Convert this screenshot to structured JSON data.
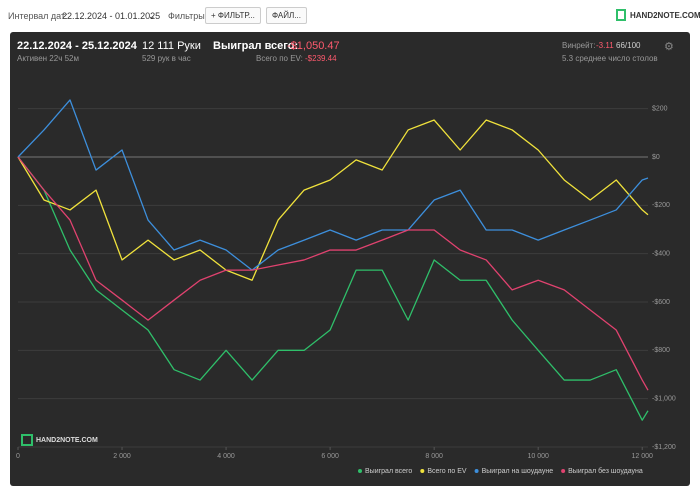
{
  "toolbar": {
    "date_label": "Интервал дат:",
    "date_range": "22.12.2024 - 01.01.2025",
    "filters_label": "Фильтры:",
    "filter_button": "ФИЛЬТР...",
    "file_button": "ФАЙЛ...",
    "logo": "HAND2NOTE.COM"
  },
  "summary": {
    "period": "22.12.2024 - 25.12.2024",
    "active": "Активен 22ч 52м",
    "hands": "12 111 Руки",
    "hands_per_hour": "529 рук в час",
    "won_label": "Выиграл всего:",
    "won_value": "-$1,050.47",
    "ev_label": "Всего по EV:",
    "ev_value": "-$239.44",
    "winrate_label": "Винрейт:",
    "winrate_value": "-3.11",
    "winrate_unit": "66/100",
    "tables": "5.3 среднее число столов"
  },
  "chart_data": {
    "type": "line",
    "watermark": "HAND2NOTE.COM",
    "x": [
      0,
      500,
      1000,
      1500,
      2000,
      2500,
      3000,
      3500,
      4000,
      4500,
      5000,
      5500,
      6000,
      6500,
      7000,
      7500,
      8000,
      8500,
      9000,
      9500,
      10000,
      10500,
      11000,
      11500,
      12000,
      12111
    ],
    "xlim": [
      0,
      12111
    ],
    "xticks": [
      0,
      {
        "value": 2000,
        "label": "2 000"
      },
      {
        "value": 4000,
        "label": "4 000"
      },
      {
        "value": 6000,
        "label": "6 000"
      },
      {
        "value": 8000,
        "label": "8 000"
      },
      {
        "value": 10000,
        "label": "10 000"
      },
      {
        "value": 12000,
        "label": "12 000"
      }
    ],
    "ylim": [
      -1200,
      300
    ],
    "yticks": [
      {
        "value": 200,
        "label": "$200"
      },
      {
        "value": 0,
        "label": "$0"
      },
      {
        "value": -200,
        "label": "-$200"
      },
      {
        "value": -400,
        "label": "-$400"
      },
      {
        "value": -600,
        "label": "-$600"
      },
      {
        "value": -800,
        "label": "-$800"
      },
      {
        "value": -1000,
        "label": "-$1,000"
      },
      {
        "value": -1200,
        "label": "-$1,200"
      }
    ],
    "grid": true,
    "series": [
      {
        "name": "Выиграл всего",
        "color": "#2fbf6a",
        "values": [
          0,
          -137,
          -385,
          -550,
          -633,
          -716,
          -880,
          -923,
          -800,
          -923,
          -800,
          -800,
          -716,
          -468,
          -468,
          -675,
          -426,
          -510,
          -510,
          -675,
          -800,
          -923,
          -923,
          -880,
          -1089,
          -1050
        ]
      },
      {
        "name": "Всего по EV",
        "color": "#f0e23c",
        "values": [
          0,
          -178,
          -219,
          -137,
          -426,
          -344,
          -426,
          -385,
          -468,
          -510,
          -261,
          -137,
          -95,
          -12,
          -54,
          112,
          153,
          29,
          153,
          112,
          29,
          -95,
          -178,
          -95,
          -219,
          -239
        ]
      },
      {
        "name": "Выиграл на шоудауне",
        "color": "#3d8fdc",
        "values": [
          0,
          112,
          236,
          -54,
          29,
          -261,
          -385,
          -344,
          -385,
          -468,
          -385,
          -344,
          -302,
          -344,
          -302,
          -302,
          -178,
          -137,
          -302,
          -302,
          -344,
          -302,
          -261,
          -219,
          -95,
          -87
        ]
      },
      {
        "name": "Выиграл без шоудауна",
        "color": "#e0426f",
        "values": [
          0,
          -137,
          -261,
          -510,
          -592,
          -675,
          -592,
          -510,
          -468,
          -468,
          -447,
          -426,
          -385,
          -385,
          -344,
          -302,
          -302,
          -385,
          -426,
          -550,
          -510,
          -550,
          -633,
          -716,
          -923,
          -965
        ]
      }
    ]
  }
}
